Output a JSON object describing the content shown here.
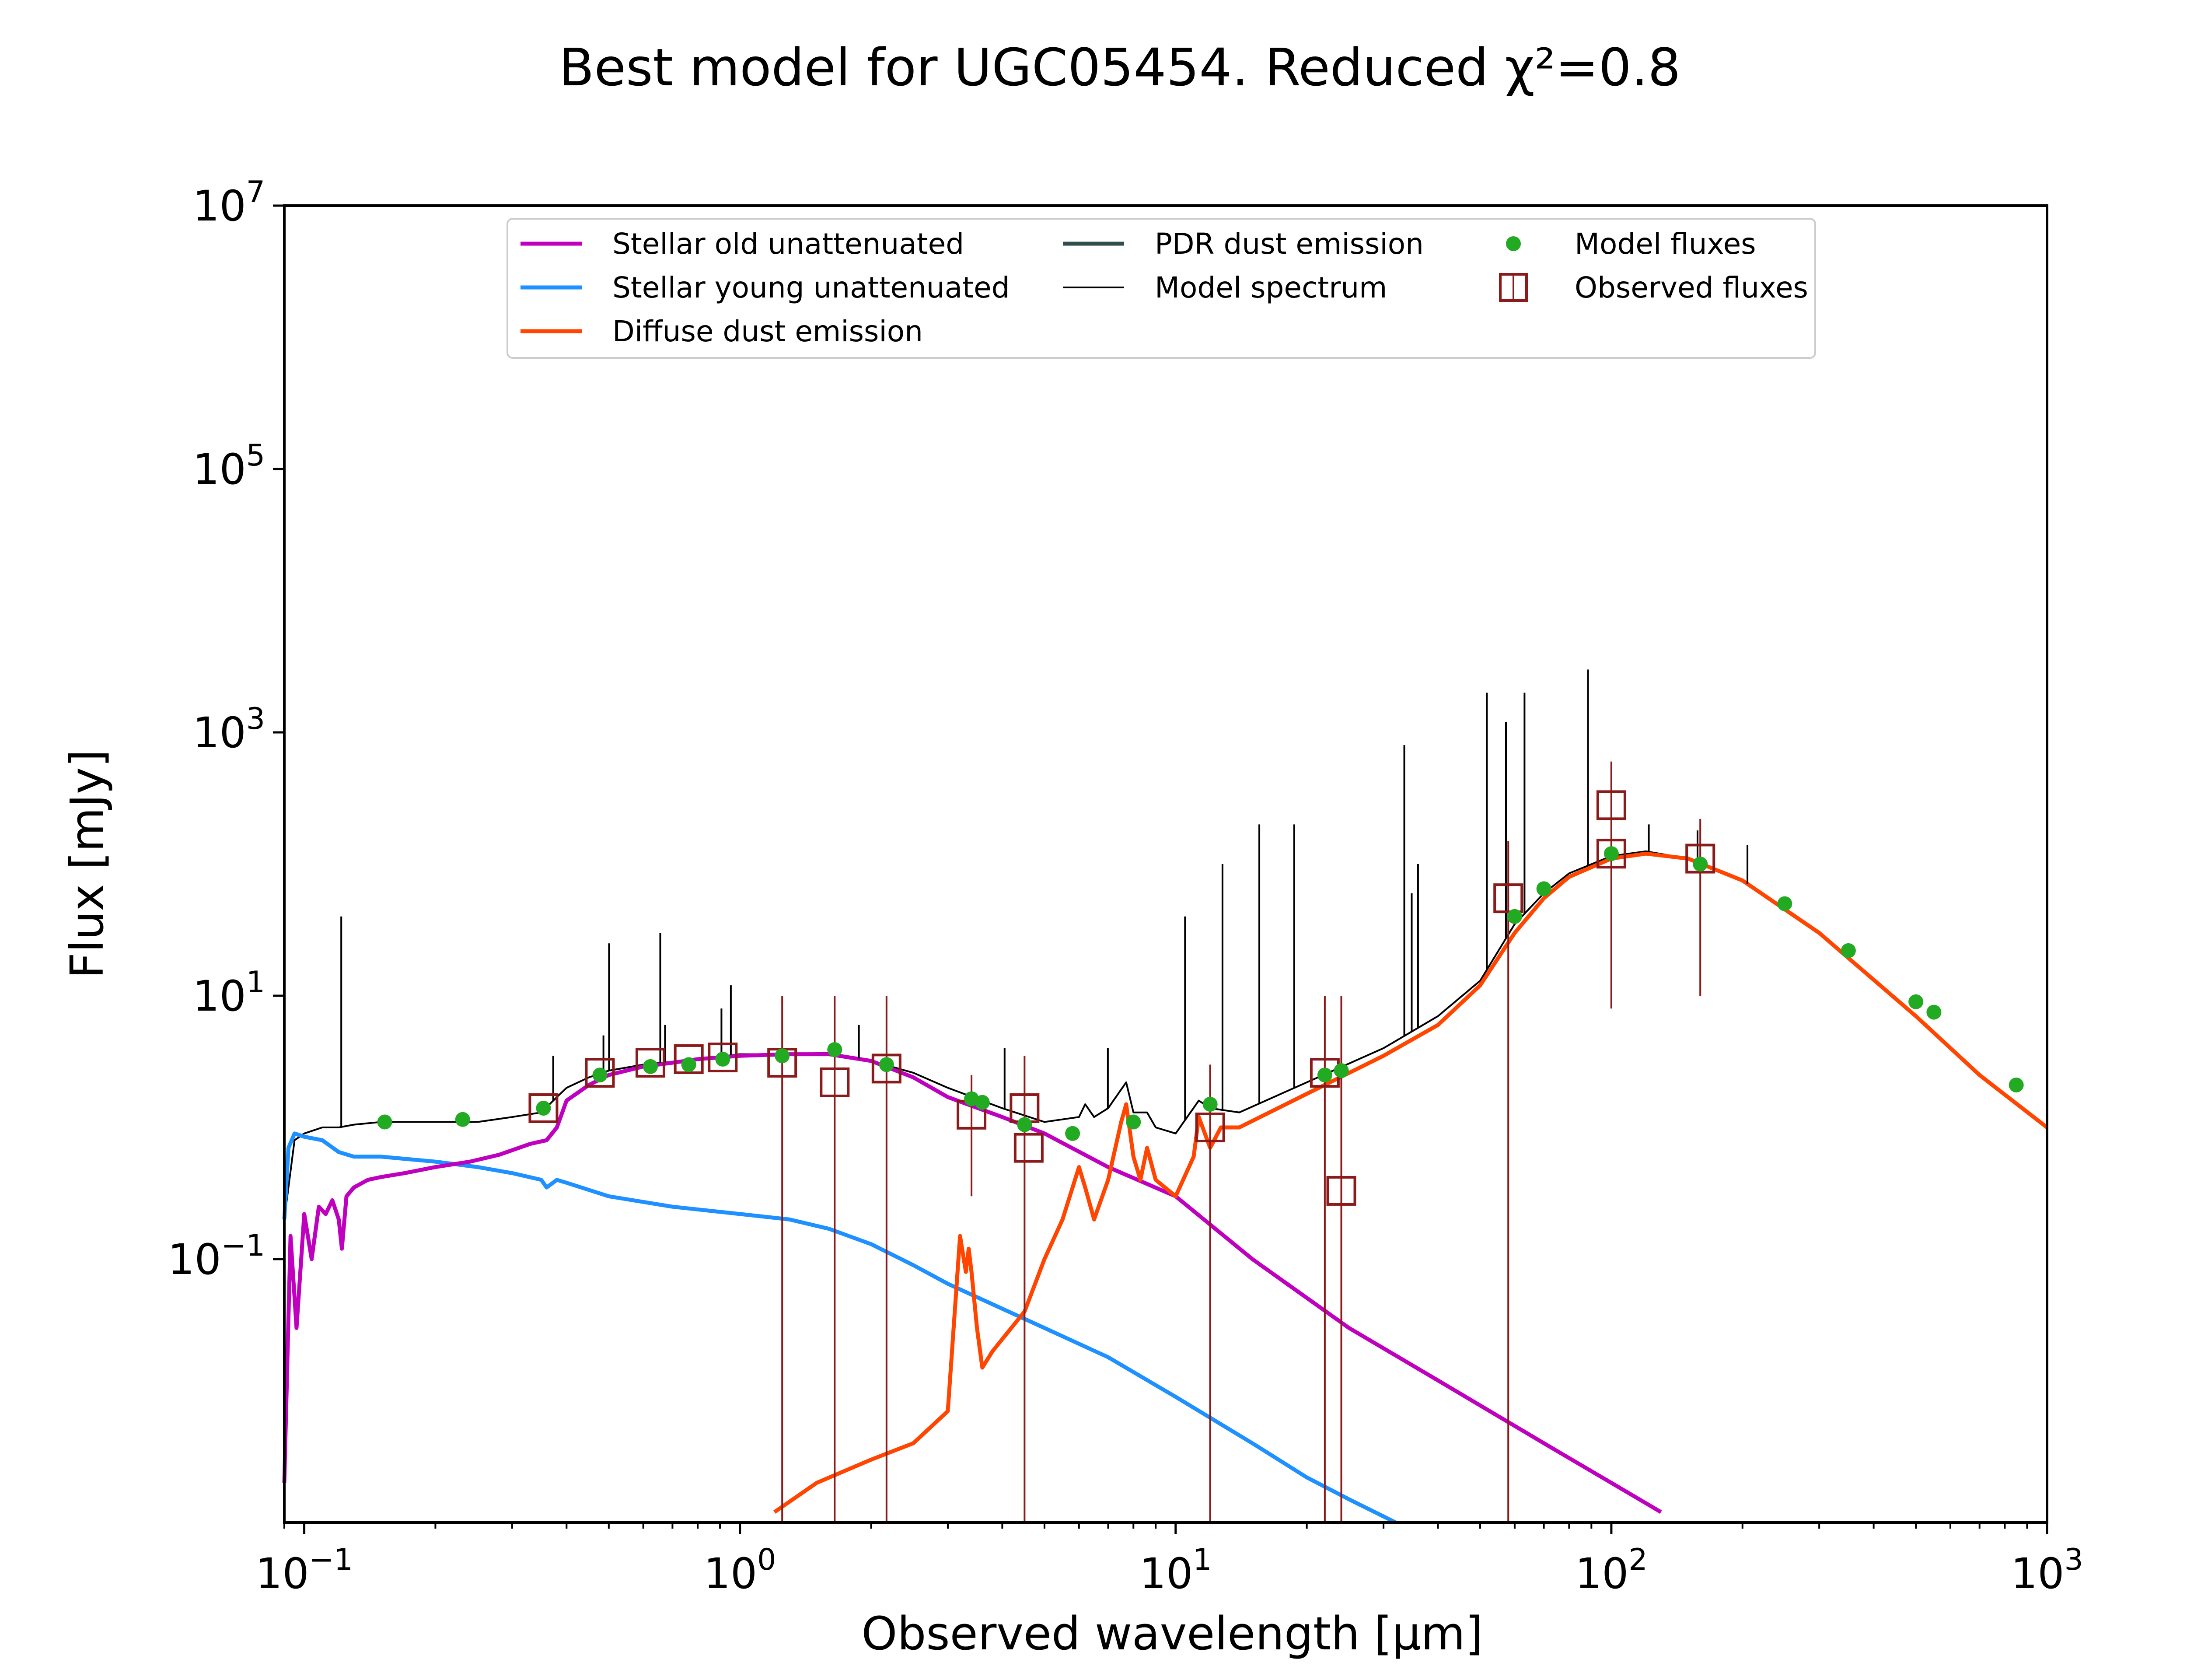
{
  "chart_data": {
    "type": "line",
    "title": "Best model for UGC05454. Reduced χ²=0.8",
    "xlabel": "Observed wavelength [μm]",
    "ylabel": "Flux [mJy]",
    "xscale": "log",
    "yscale": "log",
    "xlim": [
      0.09,
      1000
    ],
    "ylim": [
      0.001,
      10000000
    ],
    "x_ticks": [
      {
        "value": 0.1,
        "base": "10",
        "exp": "−1"
      },
      {
        "value": 1,
        "base": "10",
        "exp": "0"
      },
      {
        "value": 10,
        "base": "10",
        "exp": "1"
      },
      {
        "value": 100,
        "base": "10",
        "exp": "2"
      },
      {
        "value": 1000,
        "base": "10",
        "exp": "3"
      }
    ],
    "y_ticks": [
      {
        "value": 0.1,
        "base": "10",
        "exp": "−1"
      },
      {
        "value": 10,
        "base": "10",
        "exp": "1"
      },
      {
        "value": 1000,
        "base": "10",
        "exp": "3"
      },
      {
        "value": 100000,
        "base": "10",
        "exp": "5"
      },
      {
        "value": 10000000,
        "base": "10",
        "exp": "7"
      }
    ],
    "grid": false,
    "legend_position": "top-center",
    "legend": [
      {
        "label": "Stellar old unattenuated",
        "kind": "line",
        "color": "#BF00BF"
      },
      {
        "label": "Stellar young unattenuated",
        "kind": "line",
        "color": "#1E90FF"
      },
      {
        "label": "Diffuse dust emission",
        "kind": "line",
        "color": "#FF4500"
      },
      {
        "label": "PDR dust emission",
        "kind": "line",
        "color": "#2F4F4F"
      },
      {
        "label": "Model spectrum",
        "kind": "thinline",
        "color": "#000000"
      },
      {
        "label": "Model fluxes",
        "kind": "dot",
        "color": "#22AA22"
      },
      {
        "label": "Observed fluxes",
        "kind": "square",
        "color": "#8B1A1A"
      }
    ],
    "series": [
      {
        "name": "Stellar old unattenuated",
        "color": "#BF00BF",
        "x": [
          0.09,
          0.093,
          0.096,
          0.1,
          0.104,
          0.108,
          0.112,
          0.116,
          0.12,
          0.122,
          0.125,
          0.13,
          0.14,
          0.15,
          0.17,
          0.2,
          0.24,
          0.28,
          0.33,
          0.36,
          0.38,
          0.4,
          0.45,
          0.5,
          0.6,
          0.7,
          0.8,
          1.0,
          1.3,
          1.6,
          2.0,
          2.5,
          3.0,
          4.0,
          5.0,
          7.0,
          10,
          15,
          25,
          40,
          70,
          100,
          130
        ],
        "y": [
          0.002,
          0.15,
          0.03,
          0.22,
          0.1,
          0.25,
          0.22,
          0.28,
          0.2,
          0.12,
          0.3,
          0.35,
          0.4,
          0.42,
          0.45,
          0.5,
          0.55,
          0.62,
          0.75,
          0.8,
          1.0,
          1.6,
          2.1,
          2.5,
          2.9,
          3.1,
          3.3,
          3.5,
          3.6,
          3.6,
          3.2,
          2.4,
          1.7,
          1.2,
          0.9,
          0.5,
          0.3,
          0.1,
          0.03,
          0.012,
          0.004,
          0.002,
          0.0012
        ]
      },
      {
        "name": "Stellar young unattenuated",
        "color": "#1E90FF",
        "x": [
          0.09,
          0.092,
          0.095,
          0.1,
          0.11,
          0.12,
          0.13,
          0.15,
          0.2,
          0.25,
          0.3,
          0.35,
          0.36,
          0.38,
          0.4,
          0.5,
          0.7,
          1.0,
          1.3,
          1.6,
          2.0,
          2.5,
          3.0,
          4.0,
          5.0,
          7.0,
          10,
          15,
          20,
          25,
          32
        ],
        "y": [
          0.2,
          0.7,
          0.9,
          0.85,
          0.8,
          0.65,
          0.6,
          0.6,
          0.55,
          0.5,
          0.45,
          0.4,
          0.35,
          0.4,
          0.38,
          0.3,
          0.25,
          0.22,
          0.2,
          0.17,
          0.13,
          0.09,
          0.065,
          0.042,
          0.03,
          0.018,
          0.009,
          0.004,
          0.0022,
          0.0015,
          0.001
        ]
      },
      {
        "name": "Diffuse dust emission",
        "color": "#FF4500",
        "x": [
          1.2,
          1.5,
          2.0,
          2.5,
          3.0,
          3.2,
          3.3,
          3.35,
          3.4,
          3.5,
          3.6,
          3.8,
          4.5,
          5.0,
          5.5,
          6.0,
          6.2,
          6.5,
          7.0,
          7.5,
          7.7,
          8.0,
          8.3,
          8.6,
          9.0,
          10,
          11,
          11.3,
          12,
          12.7,
          14,
          20,
          30,
          40,
          50,
          60,
          70,
          80,
          100,
          120,
          150,
          200,
          300,
          500,
          700,
          1000
        ],
        "y": [
          0.0012,
          0.002,
          0.003,
          0.004,
          0.007,
          0.15,
          0.08,
          0.12,
          0.08,
          0.03,
          0.015,
          0.02,
          0.04,
          0.1,
          0.2,
          0.5,
          0.35,
          0.2,
          0.4,
          1.1,
          1.5,
          0.6,
          0.4,
          0.7,
          0.4,
          0.3,
          0.6,
          1.2,
          0.7,
          1.0,
          1.0,
          1.8,
          3.5,
          6,
          12,
          30,
          55,
          80,
          110,
          120,
          110,
          75,
          30,
          7,
          2.5,
          1.0
        ]
      },
      {
        "name": "Model spectrum",
        "color": "#000000",
        "x": [
          0.09,
          0.095,
          0.1,
          0.11,
          0.12,
          0.13,
          0.15,
          0.2,
          0.25,
          0.3,
          0.35,
          0.38,
          0.4,
          0.45,
          0.5,
          0.6,
          0.8,
          1.0,
          1.3,
          1.6,
          2.0,
          2.5,
          3.0,
          4.0,
          5.0,
          6.0,
          6.2,
          6.5,
          7.0,
          7.7,
          8.0,
          8.6,
          9.0,
          10,
          11.3,
          12,
          14,
          20,
          30,
          40,
          50,
          60,
          70,
          80,
          100,
          120,
          150,
          200,
          300,
          500,
          700,
          1000
        ],
        "y": [
          0.2,
          0.8,
          0.9,
          1.0,
          1.0,
          1.05,
          1.1,
          1.1,
          1.1,
          1.2,
          1.3,
          1.7,
          2.0,
          2.4,
          2.7,
          3.0,
          3.3,
          3.6,
          3.6,
          3.7,
          3.2,
          2.6,
          2.0,
          1.4,
          1.1,
          1.2,
          1.5,
          1.2,
          1.4,
          2.2,
          1.3,
          1.3,
          1.0,
          0.9,
          1.6,
          1.4,
          1.3,
          2.2,
          4.0,
          7.0,
          13,
          35,
          60,
          85,
          115,
          125,
          110,
          75,
          30,
          7,
          2.5,
          1.0
        ]
      }
    ],
    "emission_lines": [
      {
        "x": 0.1216,
        "y": 40
      },
      {
        "x": 0.3727,
        "y": 3.5
      },
      {
        "x": 0.4861,
        "y": 5
      },
      {
        "x": 0.5007,
        "y": 25
      },
      {
        "x": 0.6563,
        "y": 30
      },
      {
        "x": 0.6731,
        "y": 6
      },
      {
        "x": 0.9069,
        "y": 8
      },
      {
        "x": 0.9531,
        "y": 12
      },
      {
        "x": 1.875,
        "y": 6
      },
      {
        "x": 4.05,
        "y": 4
      },
      {
        "x": 6.99,
        "y": 4
      },
      {
        "x": 10.51,
        "y": 40
      },
      {
        "x": 12.81,
        "y": 100
      },
      {
        "x": 15.56,
        "y": 200
      },
      {
        "x": 18.71,
        "y": 200
      },
      {
        "x": 33.48,
        "y": 800
      },
      {
        "x": 34.82,
        "y": 60
      },
      {
        "x": 36.0,
        "y": 100
      },
      {
        "x": 51.8,
        "y": 2000
      },
      {
        "x": 57.3,
        "y": 1200
      },
      {
        "x": 63.2,
        "y": 2000
      },
      {
        "x": 88.4,
        "y": 3000
      },
      {
        "x": 121.9,
        "y": 200
      },
      {
        "x": 157.7,
        "y": 180
      },
      {
        "x": 205.3,
        "y": 140
      }
    ],
    "model_fluxes": {
      "name": "Model fluxes",
      "color": "#22AA22",
      "x": [
        0.153,
        0.231,
        0.354,
        0.477,
        0.623,
        0.763,
        0.913,
        1.25,
        1.65,
        2.17,
        3.4,
        3.6,
        4.5,
        5.8,
        8.0,
        12,
        22,
        24,
        60,
        70,
        100,
        160,
        250,
        350,
        500,
        550,
        850
      ],
      "y": [
        1.1,
        1.15,
        1.4,
        2.5,
        2.9,
        3.0,
        3.3,
        3.5,
        3.9,
        3.0,
        1.65,
        1.55,
        1.05,
        0.9,
        1.1,
        1.5,
        2.5,
        2.7,
        40,
        65,
        120,
        100,
        50,
        22,
        9,
        7.5,
        2.1
      ]
    },
    "observed_fluxes": {
      "name": "Observed fluxes",
      "color": "#8B1A1A",
      "x": [
        0.354,
        0.477,
        0.623,
        0.763,
        0.913,
        1.25,
        1.65,
        2.17,
        3.4,
        4.5,
        4.6,
        12,
        22,
        24,
        58,
        100,
        100,
        160
      ],
      "y": [
        1.4,
        2.6,
        3.1,
        3.3,
        3.4,
        3.1,
        2.2,
        2.8,
        1.25,
        1.4,
        0.7,
        1.0,
        2.6,
        0.33,
        55,
        280,
        120,
        110
      ],
      "err_low": [
        null,
        null,
        null,
        null,
        null,
        0.001,
        0.001,
        0.001,
        0.3,
        0.001,
        null,
        0.001,
        0.001,
        0.001,
        0.001,
        8,
        8,
        10
      ],
      "err_high": [
        null,
        null,
        null,
        null,
        null,
        10,
        10,
        10,
        2.5,
        3.5,
        null,
        3,
        10,
        10,
        150,
        600,
        600,
        220
      ]
    }
  }
}
